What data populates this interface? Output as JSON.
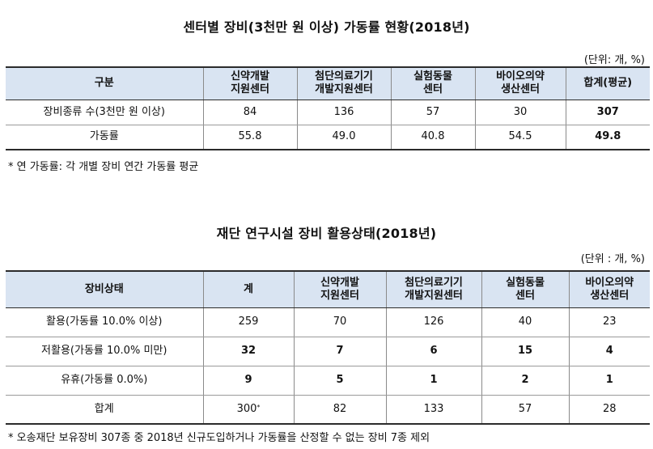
{
  "table1": {
    "title": "센터별 장비(3천만 원 이상) 가동률 현황(2018년)",
    "unit": "(단위: 개, %)",
    "headers": [
      "구분",
      "신약개발\n지원센터",
      "첨단의료기기\n개발지원센터",
      "실험동물\n센터",
      "바이오의약\n생산센터",
      "합계(평균)"
    ],
    "rows": [
      [
        "장비종류 수(3천만 원 이상)",
        "84",
        "136",
        "57",
        "30",
        "307"
      ],
      [
        "가동률",
        "55.8",
        "49.0",
        "40.8",
        "54.5",
        "49.8"
      ]
    ],
    "footnote": "* 연 가동률: 각 개별 장비 연간 가동률 평균"
  },
  "table2": {
    "title": "재단 연구시설 장비 활용상태(2018년)",
    "unit": "(단위 : 개, %)",
    "headers": [
      "장비상태",
      "계",
      "신약개발\n지원센터",
      "첨단의료기기\n개발지원센터",
      "실험동물\n센터",
      "바이오의약\n생산센터"
    ],
    "rows": [
      [
        "활용(가동률 10.0% 이상)",
        "259",
        "70",
        "126",
        "40",
        "23"
      ],
      [
        "저활용(가동률 10.0% 미만)",
        "32",
        "7",
        "6",
        "15",
        "4"
      ],
      [
        "유휴(가동률 0.0%)",
        "9",
        "5",
        "1",
        "2",
        "1"
      ],
      [
        "합계",
        "300",
        "82",
        "133",
        "57",
        "28"
      ]
    ],
    "total_sup": "*",
    "footnote": "* 오송재단 보유장비 307종 중 2018년 신규도입하거나 가동률을 산정할 수 없는 장비 7종 제외"
  }
}
